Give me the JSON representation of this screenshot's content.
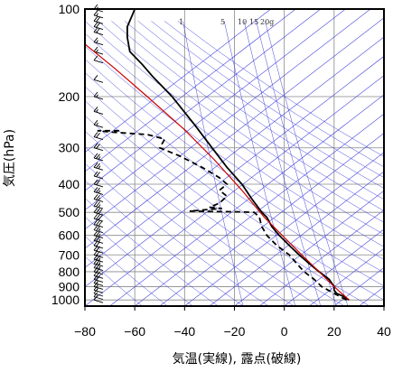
{
  "chart_data": {
    "type": "line",
    "title": "",
    "xlabel": "気温(実線), 露点(破線)",
    "ylabel": "気圧(hPa)",
    "x_ticks": [
      -80,
      -60,
      -40,
      -20,
      0,
      20,
      40
    ],
    "y_ticks": [
      100,
      200,
      300,
      400,
      500,
      600,
      700,
      800,
      900,
      1000
    ],
    "xlim": [
      -80,
      40
    ],
    "ylim": [
      1050,
      100
    ],
    "y_scale": "log",
    "grid": true,
    "mixing_ratio_labels": [
      "1",
      "5",
      "10",
      "15",
      "20g"
    ],
    "mixing_ratio_values": [
      1,
      5,
      10,
      15,
      20
    ],
    "colors": {
      "temperature": "#000000",
      "dewpoint": "#000000",
      "parcel": "#cc0000",
      "guide_lines": "#4444dd",
      "grid": "#888888"
    },
    "series": [
      {
        "role": "temperature",
        "style": "solid",
        "points": [
          [
            26,
            1000
          ],
          [
            24,
            975
          ],
          [
            21,
            950
          ],
          [
            20,
            925
          ],
          [
            20,
            900
          ],
          [
            19,
            875
          ],
          [
            18,
            850
          ],
          [
            14,
            800
          ],
          [
            10,
            750
          ],
          [
            6,
            700
          ],
          [
            2,
            650
          ],
          [
            -2,
            600
          ],
          [
            -5,
            560
          ],
          [
            -7,
            520
          ],
          [
            -9,
            500
          ],
          [
            -13,
            450
          ],
          [
            -17,
            400
          ],
          [
            -23,
            350
          ],
          [
            -29,
            300
          ],
          [
            -36,
            250
          ],
          [
            -45,
            200
          ],
          [
            -53,
            170
          ],
          [
            -57,
            155
          ],
          [
            -62,
            140
          ],
          [
            -63,
            125
          ],
          [
            -63,
            115
          ],
          [
            -61,
            105
          ],
          [
            -60,
            100
          ]
        ]
      },
      {
        "role": "dewpoint",
        "style": "dashed",
        "points": [
          [
            25,
            1000
          ],
          [
            20,
            950
          ],
          [
            15,
            900
          ],
          [
            12,
            850
          ],
          [
            8,
            800
          ],
          [
            5,
            750
          ],
          [
            2,
            700
          ],
          [
            -3,
            650
          ],
          [
            -7,
            600
          ],
          [
            -9,
            560
          ],
          [
            -10,
            520
          ],
          [
            -12,
            500
          ],
          [
            -18,
            498
          ],
          [
            -28,
            497
          ],
          [
            -38,
            495
          ],
          [
            -32,
            490
          ],
          [
            -25,
            485
          ],
          [
            -30,
            480
          ],
          [
            -26,
            465
          ],
          [
            -23,
            440
          ],
          [
            -26,
            420
          ],
          [
            -23,
            400
          ],
          [
            -26,
            380
          ],
          [
            -33,
            350
          ],
          [
            -42,
            320
          ],
          [
            -50,
            300
          ],
          [
            -48,
            280
          ],
          [
            -55,
            270
          ],
          [
            -69,
            265
          ],
          [
            -75,
            262
          ],
          [
            -65,
            262
          ]
        ]
      },
      {
        "role": "parcel",
        "style": "solid",
        "points": [
          [
            26,
            1000
          ],
          [
            20,
            900
          ],
          [
            14,
            800
          ],
          [
            7,
            700
          ],
          [
            0,
            610
          ],
          [
            -8,
            520
          ],
          [
            -17,
            420
          ],
          [
            -28,
            330
          ],
          [
            -40,
            260
          ],
          [
            -55,
            200
          ],
          [
            -68,
            160
          ],
          [
            -80,
            132
          ]
        ]
      }
    ],
    "wind_barbs": {
      "pressures": [
        1000,
        975,
        950,
        925,
        900,
        875,
        850,
        825,
        800,
        775,
        750,
        725,
        700,
        675,
        650,
        625,
        600,
        575,
        550,
        525,
        500,
        475,
        450,
        425,
        400,
        375,
        350,
        325,
        300,
        275,
        250,
        225,
        200,
        175,
        150,
        140,
        130,
        120,
        115,
        110,
        105,
        100
      ],
      "knots": [
        10,
        10,
        10,
        15,
        15,
        15,
        20,
        20,
        20,
        25,
        25,
        25,
        20,
        20,
        20,
        25,
        25,
        25,
        30,
        30,
        30,
        25,
        25,
        25,
        20,
        20,
        25,
        25,
        20,
        20,
        15,
        15,
        15,
        10,
        10,
        15,
        15,
        20,
        20,
        20,
        15,
        15
      ]
    }
  }
}
